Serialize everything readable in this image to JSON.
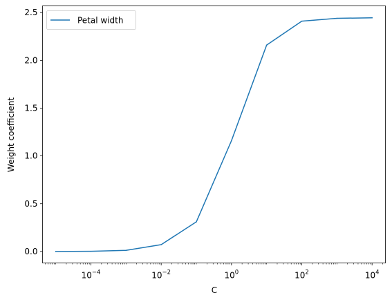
{
  "chart_data": {
    "type": "line",
    "x_scale": "log",
    "x": [
      1e-05,
      0.0001,
      0.001,
      0.01,
      0.1,
      1,
      10,
      100,
      1000,
      10000
    ],
    "series": [
      {
        "name": "Petal width",
        "color": "#1f77b4",
        "values": [
          0.0005,
          0.002,
          0.012,
          0.072,
          0.31,
          1.16,
          2.16,
          2.41,
          2.44,
          2.445
        ]
      }
    ],
    "xlabel": "C",
    "ylabel": "Weight coefficient",
    "xlim": [
      4.2e-06,
      24000
    ],
    "ylim": [
      -0.12,
      2.57
    ],
    "x_ticks": [
      {
        "value": 0.0001,
        "base": "10",
        "exp": "−4"
      },
      {
        "value": 0.01,
        "base": "10",
        "exp": "−2"
      },
      {
        "value": 1,
        "base": "10",
        "exp": "0"
      },
      {
        "value": 100,
        "base": "10",
        "exp": "2"
      },
      {
        "value": 10000,
        "base": "10",
        "exp": "4"
      }
    ],
    "y_ticks": [
      {
        "value": 0.0,
        "label": "0.0"
      },
      {
        "value": 0.5,
        "label": "0.5"
      },
      {
        "value": 1.0,
        "label": "1.0"
      },
      {
        "value": 1.5,
        "label": "1.5"
      },
      {
        "value": 2.0,
        "label": "2.0"
      },
      {
        "value": 2.5,
        "label": "2.5"
      }
    ],
    "legend": {
      "placement": "upper-left",
      "labels": [
        "Petal width"
      ]
    },
    "grid": false
  }
}
